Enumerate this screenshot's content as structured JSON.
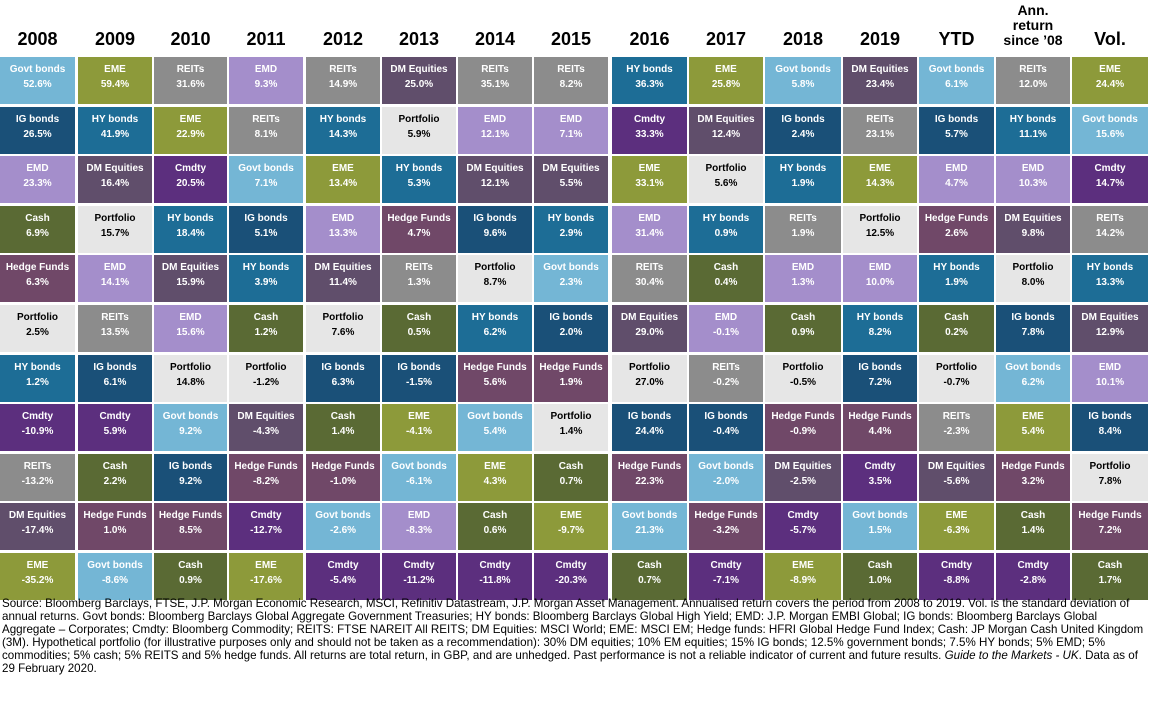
{
  "colors": {
    "Govt bonds": "#74b6d5",
    "IG bonds": "#1a5078",
    "HY bonds": "#1d6d96",
    "EME": "#8d9a3a",
    "DM Equities": "#604e6b",
    "REITs": "#8c8c8c",
    "Hedge Funds": "#704868",
    "EMD": "#a48ecb",
    "Cmdty": "#5c2f7e",
    "Cash": "#5a6a34",
    "Portfolio": "#e6e6e6"
  },
  "chart_data": {
    "type": "table",
    "columns": [
      "2008",
      "2009",
      "2010",
      "2011",
      "2012",
      "2013",
      "2014",
      "2015",
      "2016",
      "2017",
      "2018",
      "2019",
      "YTD",
      "Ann. return since ’08",
      "Vol."
    ],
    "column_label_lines": [
      [
        "2008"
      ],
      [
        "2009"
      ],
      [
        "2010"
      ],
      [
        "2011"
      ],
      [
        "2012"
      ],
      [
        "2013"
      ],
      [
        "2014"
      ],
      [
        "2015"
      ],
      [
        "2016"
      ],
      [
        "2017"
      ],
      [
        "2018"
      ],
      [
        "2019"
      ],
      [
        "YTD"
      ],
      [
        "Ann.",
        "return",
        "since ’08"
      ],
      [
        "Vol."
      ]
    ],
    "cells": [
      [
        [
          "Govt bonds",
          "52.6%"
        ],
        [
          "IG bonds",
          "26.5%"
        ],
        [
          "EMD",
          "23.3%"
        ],
        [
          "Cash",
          "6.9%"
        ],
        [
          "Hedge Funds",
          "6.3%"
        ],
        [
          "Portfolio",
          "2.5%"
        ],
        [
          "HY bonds",
          "1.2%"
        ],
        [
          "Cmdty",
          "-10.9%"
        ],
        [
          "REITs",
          "-13.2%"
        ],
        [
          "DM Equities",
          "-17.4%"
        ],
        [
          "EME",
          "-35.2%"
        ]
      ],
      [
        [
          "EME",
          "59.4%"
        ],
        [
          "HY bonds",
          "41.9%"
        ],
        [
          "DM Equities",
          "16.4%"
        ],
        [
          "Portfolio",
          "15.7%"
        ],
        [
          "EMD",
          "14.1%"
        ],
        [
          "REITs",
          "13.5%"
        ],
        [
          "IG bonds",
          "6.1%"
        ],
        [
          "Cmdty",
          "5.9%"
        ],
        [
          "Cash",
          "2.2%"
        ],
        [
          "Hedge Funds",
          "1.0%"
        ],
        [
          "Govt bonds",
          "-8.6%"
        ]
      ],
      [
        [
          "REITs",
          "31.6%"
        ],
        [
          "EME",
          "22.9%"
        ],
        [
          "Cmdty",
          "20.5%"
        ],
        [
          "HY bonds",
          "18.4%"
        ],
        [
          "DM Equities",
          "15.9%"
        ],
        [
          "EMD",
          "15.6%"
        ],
        [
          "Portfolio",
          "14.8%"
        ],
        [
          "Govt bonds",
          "9.2%"
        ],
        [
          "IG bonds",
          "9.2%"
        ],
        [
          "Hedge Funds",
          "8.5%"
        ],
        [
          "Cash",
          "0.9%"
        ]
      ],
      [
        [
          "EMD",
          "9.3%"
        ],
        [
          "REITs",
          "8.1%"
        ],
        [
          "Govt bonds",
          "7.1%"
        ],
        [
          "IG bonds",
          "5.1%"
        ],
        [
          "HY bonds",
          "3.9%"
        ],
        [
          "Cash",
          "1.2%"
        ],
        [
          "Portfolio",
          "-1.2%"
        ],
        [
          "DM Equities",
          "-4.3%"
        ],
        [
          "Hedge Funds",
          "-8.2%"
        ],
        [
          "Cmdty",
          "-12.7%"
        ],
        [
          "EME",
          "-17.6%"
        ]
      ],
      [
        [
          "REITs",
          "14.9%"
        ],
        [
          "HY bonds",
          "14.3%"
        ],
        [
          "EME",
          "13.4%"
        ],
        [
          "EMD",
          "13.3%"
        ],
        [
          "DM Equities",
          "11.4%"
        ],
        [
          "Portfolio",
          "7.6%"
        ],
        [
          "IG bonds",
          "6.3%"
        ],
        [
          "Cash",
          "1.4%"
        ],
        [
          "Hedge Funds",
          "-1.0%"
        ],
        [
          "Govt bonds",
          "-2.6%"
        ],
        [
          "Cmdty",
          "-5.4%"
        ]
      ],
      [
        [
          "DM Equities",
          "25.0%"
        ],
        [
          "Portfolio",
          "5.9%"
        ],
        [
          "HY bonds",
          "5.3%"
        ],
        [
          "Hedge Funds",
          "4.7%"
        ],
        [
          "REITs",
          "1.3%"
        ],
        [
          "Cash",
          "0.5%"
        ],
        [
          "IG bonds",
          "-1.5%"
        ],
        [
          "EME",
          "-4.1%"
        ],
        [
          "Govt bonds",
          "-6.1%"
        ],
        [
          "EMD",
          "-8.3%"
        ],
        [
          "Cmdty",
          "-11.2%"
        ]
      ],
      [
        [
          "REITs",
          "35.1%"
        ],
        [
          "EMD",
          "12.1%"
        ],
        [
          "DM Equities",
          "12.1%"
        ],
        [
          "IG bonds",
          "9.6%"
        ],
        [
          "Portfolio",
          "8.7%"
        ],
        [
          "HY bonds",
          "6.2%"
        ],
        [
          "Hedge Funds",
          "5.6%"
        ],
        [
          "Govt bonds",
          "5.4%"
        ],
        [
          "EME",
          "4.3%"
        ],
        [
          "Cash",
          "0.6%"
        ],
        [
          "Cmdty",
          "-11.8%"
        ]
      ],
      [
        [
          "REITs",
          "8.2%"
        ],
        [
          "EMD",
          "7.1%"
        ],
        [
          "DM Equities",
          "5.5%"
        ],
        [
          "HY bonds",
          "2.9%"
        ],
        [
          "Govt bonds",
          "2.3%"
        ],
        [
          "IG bonds",
          "2.0%"
        ],
        [
          "Hedge Funds",
          "1.9%"
        ],
        [
          "Portfolio",
          "1.4%"
        ],
        [
          "Cash",
          "0.7%"
        ],
        [
          "EME",
          "-9.7%"
        ],
        [
          "Cmdty",
          "-20.3%"
        ]
      ],
      [
        [
          "HY bonds",
          "36.3%"
        ],
        [
          "Cmdty",
          "33.3%"
        ],
        [
          "EME",
          "33.1%"
        ],
        [
          "EMD",
          "31.4%"
        ],
        [
          "REITs",
          "30.4%"
        ],
        [
          "DM Equities",
          "29.0%"
        ],
        [
          "Portfolio",
          "27.0%"
        ],
        [
          "IG bonds",
          "24.4%"
        ],
        [
          "Hedge Funds",
          "22.3%"
        ],
        [
          "Govt bonds",
          "21.3%"
        ],
        [
          "Cash",
          "0.7%"
        ]
      ],
      [
        [
          "EME",
          "25.8%"
        ],
        [
          "DM Equities",
          "12.4%"
        ],
        [
          "Portfolio",
          "5.6%"
        ],
        [
          "HY bonds",
          "0.9%"
        ],
        [
          "Cash",
          "0.4%"
        ],
        [
          "EMD",
          "-0.1%"
        ],
        [
          "REITs",
          "-0.2%"
        ],
        [
          "IG bonds",
          "-0.4%"
        ],
        [
          "Govt bonds",
          "-2.0%"
        ],
        [
          "Hedge Funds",
          "-3.2%"
        ],
        [
          "Cmdty",
          "-7.1%"
        ]
      ],
      [
        [
          "Govt bonds",
          "5.8%"
        ],
        [
          "IG bonds",
          "2.4%"
        ],
        [
          "HY bonds",
          "1.9%"
        ],
        [
          "REITs",
          "1.9%"
        ],
        [
          "EMD",
          "1.3%"
        ],
        [
          "Cash",
          "0.9%"
        ],
        [
          "Portfolio",
          "-0.5%"
        ],
        [
          "Hedge Funds",
          "-0.9%"
        ],
        [
          "DM Equities",
          "-2.5%"
        ],
        [
          "Cmdty",
          "-5.7%"
        ],
        [
          "EME",
          "-8.9%"
        ]
      ],
      [
        [
          "DM Equities",
          "23.4%"
        ],
        [
          "REITs",
          "23.1%"
        ],
        [
          "EME",
          "14.3%"
        ],
        [
          "Portfolio",
          "12.5%"
        ],
        [
          "EMD",
          "10.0%"
        ],
        [
          "HY bonds",
          "8.2%"
        ],
        [
          "IG bonds",
          "7.2%"
        ],
        [
          "Hedge Funds",
          "4.4%"
        ],
        [
          "Cmdty",
          "3.5%"
        ],
        [
          "Govt bonds",
          "1.5%"
        ],
        [
          "Cash",
          "1.0%"
        ]
      ],
      [
        [
          "Govt bonds",
          "6.1%"
        ],
        [
          "IG bonds",
          "5.7%"
        ],
        [
          "EMD",
          "4.7%"
        ],
        [
          "Hedge Funds",
          "2.6%"
        ],
        [
          "HY bonds",
          "1.9%"
        ],
        [
          "Cash",
          "0.2%"
        ],
        [
          "Portfolio",
          "-0.7%"
        ],
        [
          "REITs",
          "-2.3%"
        ],
        [
          "DM Equities",
          "-5.6%"
        ],
        [
          "EME",
          "-6.3%"
        ],
        [
          "Cmdty",
          "-8.8%"
        ]
      ],
      [
        [
          "REITs",
          "12.0%"
        ],
        [
          "HY bonds",
          "11.1%"
        ],
        [
          "EMD",
          "10.3%"
        ],
        [
          "DM Equities",
          "9.8%"
        ],
        [
          "Portfolio",
          "8.0%"
        ],
        [
          "IG bonds",
          "7.8%"
        ],
        [
          "Govt bonds",
          "6.2%"
        ],
        [
          "EME",
          "5.4%"
        ],
        [
          "Hedge Funds",
          "3.2%"
        ],
        [
          "Cash",
          "1.4%"
        ],
        [
          "Cmdty",
          "-2.8%"
        ]
      ],
      [
        [
          "EME",
          "24.4%"
        ],
        [
          "Govt bonds",
          "15.6%"
        ],
        [
          "Cmdty",
          "14.7%"
        ],
        [
          "REITs",
          "14.2%"
        ],
        [
          "HY bonds",
          "13.3%"
        ],
        [
          "DM Equities",
          "12.9%"
        ],
        [
          "EMD",
          "10.1%"
        ],
        [
          "IG bonds",
          "8.4%"
        ],
        [
          "Portfolio",
          "7.8%"
        ],
        [
          "Hedge Funds",
          "7.2%"
        ],
        [
          "Cash",
          "1.7%"
        ]
      ]
    ]
  },
  "footnote": {
    "main": "Source: Bloomberg Barclays, FTSE, J.P. Morgan Economic Research, MSCI, Refinitiv Datastream, J.P. Morgan Asset Management. Annualised return covers the period from 2008 to 2019. Vol. is the standard deviation of annual returns. Govt bonds: Bloomberg Barclays Global Aggregate Government Treasuries; HY bonds: Bloomberg Barclays Global High Yield; EMD: J.P. Morgan EMBI Global; IG bonds: Bloomberg Barclays Global Aggregate – Corporates; Cmdty: Bloomberg Commodity; REITS: FTSE NAREIT All REITS; DM Equities: MSCI World; EME: MSCI EM; Hedge funds: HFRI Global Hedge Fund Index; Cash: JP Morgan Cash United Kingdom (3M). Hypothetical portfolio (for illustrative purposes only and should not be taken as a recommendation): 30% DM equities; 10% EM equities; 15% IG bonds; 12.5% government bonds; 7.5% HY bonds; 5% EMD; 5% commodities; 5% cash; 5% REITS and 5% hedge funds. All returns are total return, in GBP, and are unhedged. Past performance is not a reliable indicator of current and future results.",
    "guide": "Guide to the Markets - UK",
    "date": ". Data as of 29 February 2020."
  }
}
